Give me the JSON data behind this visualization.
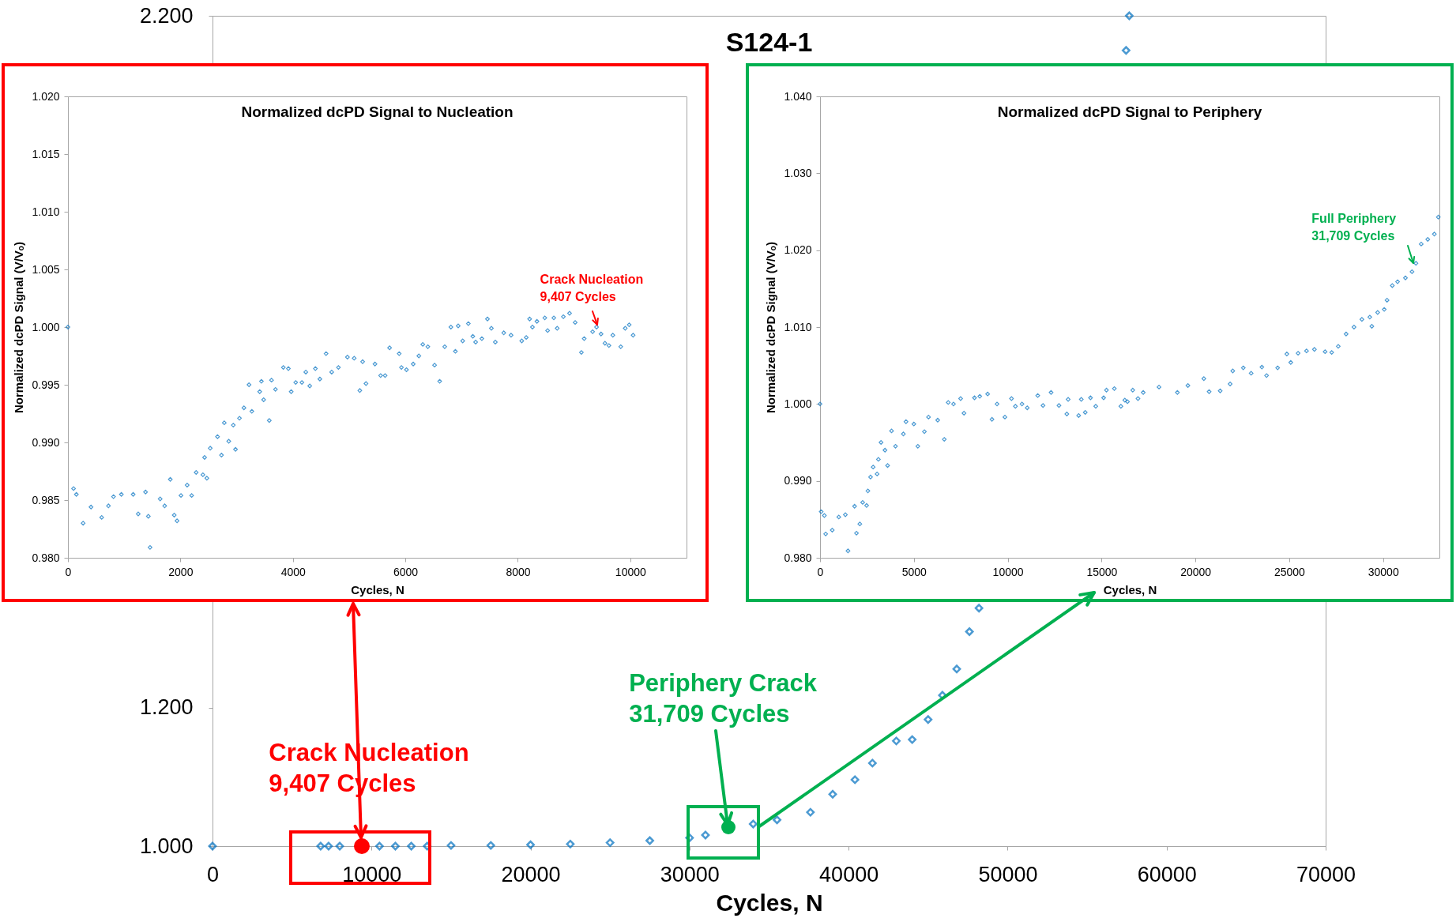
{
  "chart_data": [
    {
      "type": "scatter",
      "title": "S124-1",
      "xlabel": "Cycles, N",
      "color": "#0070c0",
      "marker": "diamond",
      "x": [
        0,
        6800,
        7300,
        8000,
        10500,
        11500,
        12500,
        13500,
        15000,
        17500,
        20000,
        22500,
        25000,
        27500,
        30000,
        31000,
        34000,
        35500,
        37600,
        39000,
        40400,
        41500,
        43000,
        44000,
        45000,
        45900,
        46800,
        47600,
        48200,
        57450,
        57650
      ],
      "values": [
        1.0,
        1.0,
        1.0,
        1.0,
        1.0,
        1.0,
        1.0,
        1.0,
        1.001,
        1.001,
        1.002,
        1.003,
        1.005,
        1.008,
        1.012,
        1.016,
        1.032,
        1.038,
        1.049,
        1.075,
        1.096,
        1.12,
        1.152,
        1.154,
        1.183,
        1.218,
        1.256,
        1.31,
        1.344,
        2.15,
        2.2
      ],
      "xlim": [
        0,
        70000
      ],
      "xticks": [
        0,
        10000,
        20000,
        30000,
        40000,
        50000,
        60000,
        70000
      ],
      "ylim": [
        1.0,
        2.2
      ],
      "yticks": [
        {
          "value": 1.0,
          "label": "1.000"
        },
        {
          "value": 1.2,
          "label": "1.200"
        },
        {
          "value": 2.2,
          "label": "2.200"
        }
      ],
      "annotations": [
        {
          "text": "Crack Nucleation\n9,407 Cycles",
          "x": 9407,
          "y": 1.0
        },
        {
          "text": "Periphery Crack\n31,709 Cycles",
          "x": 32450,
          "y": 1.027
        }
      ]
    },
    {
      "type": "scatter",
      "title": "Normalized dcPD Signal to Nucleation",
      "xlabel": "Cycles, N",
      "ylabel": "Normalized dcPD Signal (V/Vₒ)",
      "color": "#0070c0",
      "marker": "diamond",
      "x": [
        0,
        100,
        150,
        270,
        410,
        600,
        720,
        810,
        950,
        1160,
        1250,
        1380,
        1430,
        1460,
        1640,
        1720,
        1820,
        1890,
        1940,
        2010,
        2120,
        2200,
        2280,
        2400,
        2430,
        2470,
        2530,
        2660,
        2730,
        2780,
        2860,
        2940,
        2980,
        3050,
        3130,
        3220,
        3270,
        3410,
        3440,
        3480,
        3580,
        3620,
        3690,
        3830,
        3920,
        3970,
        4050,
        4160,
        4230,
        4300,
        4400,
        4480,
        4590,
        4690,
        4810,
        4970,
        5090,
        5190,
        5240,
        5300,
        5460,
        5560,
        5640,
        5720,
        5890,
        5930,
        6020,
        6140,
        6240,
        6310,
        6400,
        6520,
        6610,
        6700,
        6810,
        6890,
        6940,
        7020,
        7120,
        7200,
        7250,
        7360,
        7460,
        7530,
        7600,
        7750,
        7880,
        8070,
        8150,
        8210,
        8260,
        8340,
        8480,
        8530,
        8640,
        8700,
        8810,
        8920,
        9020,
        9130,
        9180,
        9330,
        9400,
        9480,
        9550,
        9620,
        9690,
        9830,
        9910,
        9980,
        10050
      ],
      "values": [
        1.0,
        0.986,
        0.9855,
        0.983,
        0.9844,
        0.9835,
        0.9845,
        0.9853,
        0.9855,
        0.9855,
        0.9838,
        0.9857,
        0.9836,
        0.9809,
        0.9851,
        0.9845,
        0.9868,
        0.9837,
        0.9832,
        0.9854,
        0.9863,
        0.9854,
        0.9874,
        0.9872,
        0.9887,
        0.9869,
        0.9895,
        0.9905,
        0.9889,
        0.9917,
        0.9901,
        0.9915,
        0.9894,
        0.9921,
        0.993,
        0.995,
        0.9927,
        0.9944,
        0.9953,
        0.9937,
        0.9919,
        0.9954,
        0.9946,
        0.9965,
        0.9964,
        0.9944,
        0.9952,
        0.9952,
        0.9961,
        0.9949,
        0.9964,
        0.9955,
        0.9977,
        0.9961,
        0.9965,
        0.9974,
        0.9973,
        0.9945,
        0.997,
        0.9951,
        0.9968,
        0.9958,
        0.9958,
        0.9982,
        0.9977,
        0.9965,
        0.9963,
        0.9968,
        0.9975,
        0.9985,
        0.9983,
        0.9967,
        0.9953,
        0.9983,
        1.0,
        0.9979,
        1.0001,
        0.9988,
        1.0003,
        0.9992,
        0.9987,
        0.999,
        1.0007,
        0.9999,
        0.9987,
        0.9995,
        0.9993,
        0.9988,
        0.9991,
        1.0007,
        1.0,
        1.0005,
        1.0008,
        0.9997,
        1.0008,
        0.9999,
        1.0009,
        1.0012,
        1.0004,
        0.9978,
        0.999,
        0.9996,
        1.0,
        0.9994,
        0.9986,
        0.9984,
        0.9993,
        0.9983,
        0.9999,
        1.0002,
        0.9993
      ],
      "xlim": [
        0,
        11000
      ],
      "xticks": [
        0,
        2000,
        4000,
        6000,
        8000,
        10000
      ],
      "ylim": [
        0.98,
        1.02
      ],
      "yticks": [
        {
          "value": 0.98,
          "label": "0.980"
        },
        0.985,
        {
          "value": 0.99,
          "label": "0.990"
        },
        0.995,
        {
          "value": 1.0,
          "label": "1.000"
        },
        1.005,
        {
          "value": 1.01,
          "label": "1.010"
        },
        1.015,
        {
          "value": 1.02,
          "label": "1.020"
        }
      ],
      "annotations": [
        {
          "text": "Crack Nucleation\n9,407 Cycles",
          "x": 9407,
          "y": 1.0
        }
      ]
    },
    {
      "type": "scatter",
      "title": "Normalized dcPD Signal to Periphery",
      "xlabel": "Cycles, N",
      "ylabel": "Normalized dcPD Signal (V/Vₒ)",
      "color": "#0070c0",
      "marker": "diamond",
      "x": [
        0,
        60,
        230,
        300,
        650,
        1000,
        1350,
        1490,
        1840,
        1940,
        2120,
        2270,
        2480,
        2550,
        2690,
        2830,
        3040,
        3110,
        3250,
        3460,
        3600,
        3810,
        4020,
        4440,
        4580,
        5000,
        5210,
        5560,
        5780,
        6270,
        6620,
        6830,
        7110,
        7490,
        7670,
        8230,
        8510,
        8930,
        9160,
        9430,
        9850,
        10200,
        10410,
        10760,
        11040,
        11600,
        11880,
        12310,
        12730,
        13150,
        13220,
        13780,
        13920,
        14130,
        14410,
        14690,
        15110,
        15260,
        15680,
        16030,
        16240,
        16380,
        16660,
        16940,
        17220,
        18060,
        19040,
        19600,
        20450,
        20730,
        21320,
        21850,
        21990,
        22550,
        22970,
        23540,
        23790,
        24380,
        24870,
        25080,
        25470,
        25920,
        26340,
        26910,
        27260,
        27610,
        28030,
        28450,
        28870,
        29290,
        29400,
        29710,
        30060,
        30210,
        30490,
        30770,
        31190,
        31540,
        31750,
        32030,
        32380,
        32730,
        32940
      ],
      "values": [
        1.0,
        0.986,
        0.9855,
        0.9831,
        0.9836,
        0.9853,
        0.9856,
        0.9809,
        0.9867,
        0.9832,
        0.9844,
        0.9872,
        0.9868,
        0.9887,
        0.9905,
        0.9918,
        0.9909,
        0.9928,
        0.995,
        0.994,
        0.992,
        0.9965,
        0.9945,
        0.9961,
        0.9977,
        0.9974,
        0.9945,
        0.9964,
        0.9983,
        0.9979,
        0.9954,
        1.0002,
        1.0,
        1.0007,
        0.9988,
        1.0008,
        1.001,
        1.0013,
        0.998,
        1.0,
        0.9983,
        1.0007,
        0.9997,
        1.0,
        0.9995,
        1.0011,
        0.9998,
        1.0015,
        0.9998,
        0.9987,
        1.0006,
        0.9985,
        1.0006,
        0.9989,
        1.0008,
        0.9997,
        1.0008,
        1.0018,
        1.002,
        0.9997,
        1.0005,
        1.0003,
        1.0018,
        1.0007,
        1.0015,
        1.0022,
        1.0015,
        1.0024,
        1.0033,
        1.0016,
        1.0017,
        1.0026,
        1.0043,
        1.0047,
        1.004,
        1.0048,
        1.0037,
        1.0047,
        1.0065,
        1.0054,
        1.0066,
        1.0069,
        1.0071,
        1.0068,
        1.0067,
        1.0075,
        1.0091,
        1.01,
        1.011,
        1.0113,
        1.0101,
        1.0119,
        1.0123,
        1.0135,
        1.0154,
        1.0159,
        1.0164,
        1.0172,
        1.0183,
        1.0208,
        1.0214,
        1.0221,
        1.0243
      ],
      "xlim": [
        0,
        33000
      ],
      "xticks": [
        0,
        5000,
        10000,
        15000,
        20000,
        25000,
        30000
      ],
      "ylim": [
        0.98,
        1.04
      ],
      "yticks": [
        {
          "value": 0.98,
          "label": "0.980"
        },
        {
          "value": 0.99,
          "label": "0.990"
        },
        {
          "value": 1.0,
          "label": "1.000"
        },
        {
          "value": 1.01,
          "label": "1.010"
        },
        {
          "value": 1.02,
          "label": "1.020"
        },
        {
          "value": 1.03,
          "label": "1.030"
        },
        {
          "value": 1.04,
          "label": "1.040"
        }
      ],
      "annotations": [
        {
          "text": "Full Periphery\n31,709 Cycles",
          "x": 31709,
          "y": 1.018
        }
      ]
    }
  ]
}
